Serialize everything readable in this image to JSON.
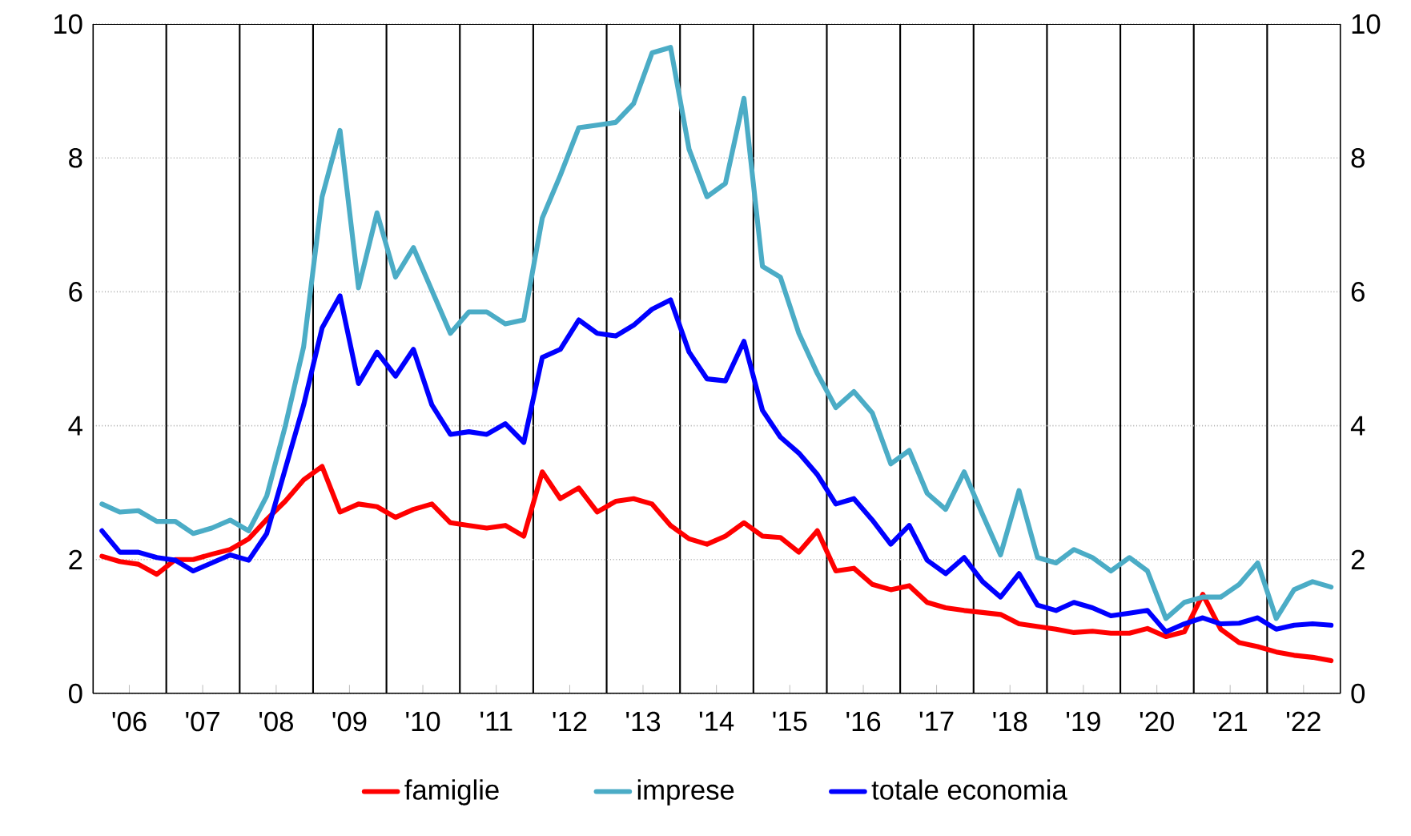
{
  "chart_data": {
    "type": "line",
    "x": [
      "2006-02-15",
      "2006-05-15",
      "2006-08-15",
      "2006-11-15",
      "2007-02-15",
      "2007-05-15",
      "2007-08-15",
      "2007-11-15",
      "2008-02-15",
      "2008-05-15",
      "2008-08-15",
      "2008-11-15",
      "2009-02-15",
      "2009-05-15",
      "2009-08-15",
      "2009-11-15",
      "2010-02-15",
      "2010-05-15",
      "2010-08-15",
      "2010-11-15",
      "2011-02-15",
      "2011-05-15",
      "2011-08-15",
      "2011-11-15",
      "2012-02-15",
      "2012-05-15",
      "2012-08-15",
      "2012-11-15",
      "2013-02-15",
      "2013-05-15",
      "2013-08-15",
      "2013-11-15",
      "2014-02-15",
      "2014-05-15",
      "2014-08-15",
      "2014-11-15",
      "2015-02-15",
      "2015-05-15",
      "2015-08-15",
      "2015-11-15",
      "2016-02-15",
      "2016-05-15",
      "2016-08-15",
      "2016-11-15",
      "2017-02-15",
      "2017-05-15",
      "2017-08-15",
      "2017-11-15",
      "2018-02-15",
      "2018-05-15",
      "2018-08-15",
      "2018-11-15",
      "2019-02-15",
      "2019-05-15",
      "2019-08-15",
      "2019-11-15",
      "2020-02-15",
      "2020-05-15",
      "2020-08-15",
      "2020-11-15",
      "2021-02-15",
      "2021-05-15",
      "2021-08-15",
      "2021-11-15",
      "2022-02-15",
      "2022-05-15",
      "2022-08-15",
      "2022-11-15"
    ],
    "series": [
      {
        "name": "famiglie",
        "color": "#ff0000",
        "values": [
          2.05,
          1.97,
          1.93,
          1.78,
          2.0,
          2.0,
          2.08,
          2.15,
          2.31,
          2.6,
          2.87,
          3.19,
          3.39,
          2.71,
          2.83,
          2.79,
          2.63,
          2.75,
          2.83,
          2.55,
          2.51,
          2.47,
          2.51,
          2.35,
          3.31,
          2.91,
          3.07,
          2.71,
          2.87,
          2.91,
          2.83,
          2.51,
          2.31,
          2.23,
          2.35,
          2.55,
          2.35,
          2.33,
          2.11,
          2.43,
          1.83,
          1.87,
          1.63,
          1.55,
          1.61,
          1.36,
          1.28,
          1.24,
          1.21,
          1.18,
          1.04,
          1.0,
          0.96,
          0.91,
          0.93,
          0.9,
          0.9,
          0.97,
          0.85,
          0.92,
          1.48,
          0.96,
          0.76,
          0.7,
          0.62,
          0.57,
          0.54,
          0.49
        ]
      },
      {
        "name": "imprese",
        "color": "#4bacc6",
        "values": [
          2.83,
          2.71,
          2.73,
          2.57,
          2.57,
          2.39,
          2.47,
          2.59,
          2.43,
          2.95,
          3.99,
          5.18,
          7.42,
          8.41,
          6.06,
          7.18,
          6.22,
          6.66,
          6.02,
          5.38,
          5.7,
          5.7,
          5.52,
          5.58,
          7.1,
          7.74,
          8.45,
          8.49,
          8.53,
          8.81,
          9.57,
          9.65,
          8.13,
          7.42,
          7.62,
          8.89,
          6.38,
          6.22,
          5.38,
          4.78,
          4.27,
          4.51,
          4.19,
          3.43,
          3.63,
          2.99,
          2.75,
          3.31,
          2.67,
          2.07,
          3.03,
          2.03,
          1.95,
          2.15,
          2.03,
          1.83,
          2.03,
          1.83,
          1.12,
          1.36,
          1.44,
          1.44,
          1.63,
          1.95,
          1.12,
          1.55,
          1.67,
          1.59
        ]
      },
      {
        "name": "totale economia",
        "color": "#0000ff",
        "values": [
          2.43,
          2.11,
          2.11,
          2.03,
          1.99,
          1.83,
          1.95,
          2.07,
          1.99,
          2.39,
          3.35,
          4.31,
          5.46,
          5.94,
          4.63,
          5.1,
          4.74,
          5.14,
          4.31,
          3.87,
          3.91,
          3.87,
          4.03,
          3.75,
          5.02,
          5.14,
          5.58,
          5.38,
          5.34,
          5.5,
          5.74,
          5.88,
          5.1,
          4.7,
          4.67,
          5.26,
          4.23,
          3.83,
          3.59,
          3.27,
          2.83,
          2.91,
          2.59,
          2.23,
          2.51,
          1.99,
          1.79,
          2.03,
          1.67,
          1.44,
          1.79,
          1.32,
          1.24,
          1.36,
          1.28,
          1.16,
          1.2,
          1.24,
          0.92,
          1.04,
          1.13,
          1.04,
          1.05,
          1.13,
          0.96,
          1.02,
          1.04,
          1.02
        ]
      }
    ],
    "xlim": [
      "2006-01-01",
      "2023-01-01"
    ],
    "xticks": [
      {
        "value": "2006-07-01",
        "label": "'06"
      },
      {
        "value": "2007-01-01",
        "label": null
      },
      {
        "value": "2007-07-01",
        "label": "'07"
      },
      {
        "value": "2008-01-01",
        "label": null
      },
      {
        "value": "2008-07-01",
        "label": "'08"
      },
      {
        "value": "2009-01-01",
        "label": null
      },
      {
        "value": "2009-07-01",
        "label": "'09"
      },
      {
        "value": "2010-01-01",
        "label": null
      },
      {
        "value": "2010-07-01",
        "label": "'10"
      },
      {
        "value": "2011-01-01",
        "label": null
      },
      {
        "value": "2011-07-01",
        "label": "'11"
      },
      {
        "value": "2012-01-01",
        "label": null
      },
      {
        "value": "2012-07-01",
        "label": "'12"
      },
      {
        "value": "2013-01-01",
        "label": null
      },
      {
        "value": "2013-07-01",
        "label": "'13"
      },
      {
        "value": "2014-01-01",
        "label": null
      },
      {
        "value": "2014-07-01",
        "label": "'14"
      },
      {
        "value": "2015-01-01",
        "label": null
      },
      {
        "value": "2015-07-01",
        "label": "'15"
      },
      {
        "value": "2016-01-01",
        "label": null
      },
      {
        "value": "2016-07-01",
        "label": "'16"
      },
      {
        "value": "2017-01-01",
        "label": null
      },
      {
        "value": "2017-07-01",
        "label": "'17"
      },
      {
        "value": "2018-01-01",
        "label": null
      },
      {
        "value": "2018-07-01",
        "label": "'18"
      },
      {
        "value": "2019-01-01",
        "label": null
      },
      {
        "value": "2019-07-01",
        "label": "'19"
      },
      {
        "value": "2020-01-01",
        "label": null
      },
      {
        "value": "2020-07-01",
        "label": "'20"
      },
      {
        "value": "2021-01-01",
        "label": null
      },
      {
        "value": "2021-07-01",
        "label": "'21"
      },
      {
        "value": "2022-01-01",
        "label": null
      },
      {
        "value": "2022-07-01",
        "label": "'22"
      }
    ],
    "ylim": [
      0,
      10
    ],
    "yticks": [
      0,
      2,
      4,
      6,
      8,
      10
    ],
    "y2lim": [
      0,
      10
    ],
    "y2ticks": [
      0,
      2,
      4,
      6,
      8,
      10
    ],
    "grid": true,
    "legend": "bottom",
    "line_style": "solid"
  }
}
